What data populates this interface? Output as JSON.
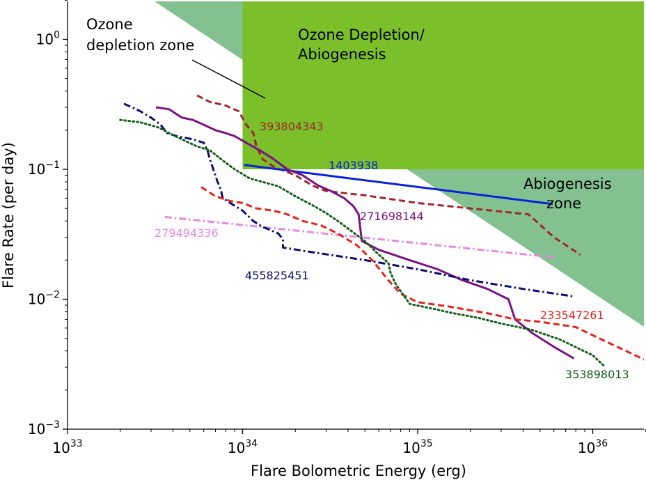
{
  "chart_data": {
    "type": "line",
    "xlabel": "Flare Bolometric Energy (erg)",
    "ylabel": "Flare Rate (per day)",
    "xscale": "log",
    "yscale": "log",
    "xlim": [
      1e+33,
      2e+36
    ],
    "ylim": [
      0.001,
      2
    ],
    "x_ticks": [
      {
        "base": "10",
        "exp": "33",
        "value": 1e+33
      },
      {
        "base": "10",
        "exp": "34",
        "value": 1e+34
      },
      {
        "base": "10",
        "exp": "35",
        "value": 1e+35
      },
      {
        "base": "10",
        "exp": "36",
        "value": 1e+36
      }
    ],
    "y_ticks": [
      {
        "base": "10",
        "exp": "−3",
        "value": 0.001
      },
      {
        "base": "10",
        "exp": "−2",
        "value": 0.01
      },
      {
        "base": "10",
        "exp": "−1",
        "value": 0.1
      },
      {
        "base": "10",
        "exp": "0",
        "value": 1
      }
    ],
    "grid": false,
    "zones": [
      {
        "lines": [
          "Ozone Depletion/",
          "Abiogenesis"
        ],
        "color": "#7bbf2a"
      },
      {
        "lines": [
          "Ozone",
          "depletion zone"
        ],
        "color": "#ffff7a"
      },
      {
        "lines": [
          "Abiogenesis",
          "zone"
        ],
        "color": "#5aad6b"
      }
    ],
    "series": [
      {
        "name": "393804343",
        "color": "#a0282c",
        "dash": "dashed",
        "x": [
          5.5e+33,
          6.5e+33,
          8e+33,
          9.5e+33,
          1.05e+34,
          1.15e+34,
          1.2e+34,
          1.3e+34,
          1.5e+34,
          1.7e+34,
          2e+34,
          2.5e+34,
          3e+34,
          5e+34,
          1e+35,
          2e+35,
          4.3e+35,
          6e+35,
          8.5e+35
        ],
        "y": [
          0.37,
          0.33,
          0.31,
          0.28,
          0.22,
          0.19,
          0.15,
          0.12,
          0.105,
          0.098,
          0.09,
          0.075,
          0.068,
          0.063,
          0.055,
          0.05,
          0.045,
          0.03,
          0.022
        ]
      },
      {
        "name": "1403938",
        "color": "#0a21d6",
        "dash": "solid",
        "x": [
          1.02e+34,
          5.9e+35
        ],
        "y": [
          0.108,
          0.054
        ]
      },
      {
        "name": "271698144",
        "color": "#7a1283",
        "dash": "solid",
        "x": [
          3.2e+33,
          3.8e+33,
          4.5e+33,
          5.2e+33,
          6e+33,
          7e+33,
          8e+33,
          9e+33,
          1.05e+34,
          1.25e+34,
          1.5e+34,
          1.8e+34,
          2.2e+34,
          2.7e+34,
          3.2e+34,
          3.8e+34,
          4.3e+34,
          4.6e+34,
          4.8e+34,
          6e+34,
          9e+34,
          1.3e+35,
          1.8e+35,
          2.5e+35,
          3.3e+35,
          3.6e+35,
          4.5e+35,
          6e+35,
          7.8e+35
        ],
        "y": [
          0.3,
          0.29,
          0.25,
          0.24,
          0.22,
          0.2,
          0.19,
          0.18,
          0.16,
          0.14,
          0.12,
          0.1,
          0.09,
          0.075,
          0.068,
          0.06,
          0.052,
          0.045,
          0.028,
          0.024,
          0.02,
          0.017,
          0.014,
          0.012,
          0.01,
          0.007,
          0.0055,
          0.0043,
          0.0035
        ]
      },
      {
        "name": "279494336",
        "color": "#e589e4",
        "dash": "dashdot",
        "x": [
          3.6e+33,
          6e+35
        ],
        "y": [
          0.043,
          0.021
        ]
      },
      {
        "name": "455825451",
        "color": "#0d0e6c",
        "dash": "dashdot",
        "x": [
          2.1e+33,
          2.6e+33,
          3e+33,
          3.4e+33,
          3.7e+33,
          4.2e+33,
          5.2e+33,
          6e+33,
          6.3e+33,
          6.5e+33,
          6.8e+33,
          7.2e+33,
          7.5e+33,
          7.7e+33,
          8.5e+33,
          1e+34,
          1.15e+34,
          1.3e+34,
          1.45e+34,
          1.6e+34,
          1.7e+34,
          1.7e+34,
          2.5e+34,
          5e+34,
          1e+35,
          2e+35,
          4e+35,
          7.8e+35
        ],
        "y": [
          0.32,
          0.28,
          0.25,
          0.22,
          0.19,
          0.18,
          0.17,
          0.16,
          0.14,
          0.12,
          0.1,
          0.08,
          0.07,
          0.06,
          0.055,
          0.048,
          0.04,
          0.036,
          0.034,
          0.032,
          0.029,
          0.025,
          0.023,
          0.02,
          0.017,
          0.014,
          0.012,
          0.0105
        ]
      },
      {
        "name": "233547261",
        "color": "#e5231e",
        "dash": "dashed",
        "x": [
          5.8e+33,
          7e+33,
          8.5e+33,
          1e+34,
          1.2e+34,
          1.5e+34,
          1.8e+34,
          2.2e+34,
          2.8e+34,
          3.5e+34,
          4.5e+34,
          5.5e+34,
          6.8e+34,
          8e+34,
          1e+35,
          1.5e+35,
          2.5e+35,
          3.6e+35,
          5e+35,
          8e+35,
          1.2e+36,
          2e+36
        ],
        "y": [
          0.073,
          0.062,
          0.057,
          0.055,
          0.05,
          0.048,
          0.045,
          0.04,
          0.037,
          0.032,
          0.026,
          0.02,
          0.014,
          0.011,
          0.0095,
          0.0088,
          0.0078,
          0.007,
          0.0067,
          0.0061,
          0.0047,
          0.0034
        ]
      },
      {
        "name": "353898013",
        "color": "#135e1a",
        "dash": "dotted",
        "x": [
          2e+33,
          2.6e+33,
          3.3e+33,
          3.8e+33,
          4.5e+33,
          5.5e+33,
          6.5e+33,
          7.5e+33,
          9e+33,
          1.1e+34,
          1.3e+34,
          1.6e+34,
          2e+34,
          2.5e+34,
          3e+34,
          3.5e+34,
          4e+34,
          5e+34,
          6e+34,
          6.8e+34,
          7e+34,
          7.5e+34,
          9e+34,
          1.2e+35,
          1.6e+35,
          2.2e+35,
          3e+35,
          4.5e+35,
          6.5e+35,
          1e+36,
          1.15e+36
        ],
        "y": [
          0.24,
          0.23,
          0.21,
          0.19,
          0.17,
          0.15,
          0.14,
          0.12,
          0.1,
          0.085,
          0.08,
          0.074,
          0.062,
          0.053,
          0.046,
          0.04,
          0.035,
          0.028,
          0.022,
          0.019,
          0.016,
          0.013,
          0.0092,
          0.0085,
          0.0078,
          0.0072,
          0.0065,
          0.0058,
          0.0049,
          0.0037,
          0.0031
        ]
      }
    ],
    "series_labels": [
      {
        "text": "393804343",
        "color": "#a0282c"
      },
      {
        "text": "1403938",
        "color": "#0a21d6"
      },
      {
        "text": "271698144",
        "color": "#7a1283"
      },
      {
        "text": "279494336",
        "color": "#e589e4"
      },
      {
        "text": "455825451",
        "color": "#0d0e6c"
      },
      {
        "text": "233547261",
        "color": "#e5231e"
      },
      {
        "text": "353898013",
        "color": "#135e1a"
      }
    ]
  }
}
